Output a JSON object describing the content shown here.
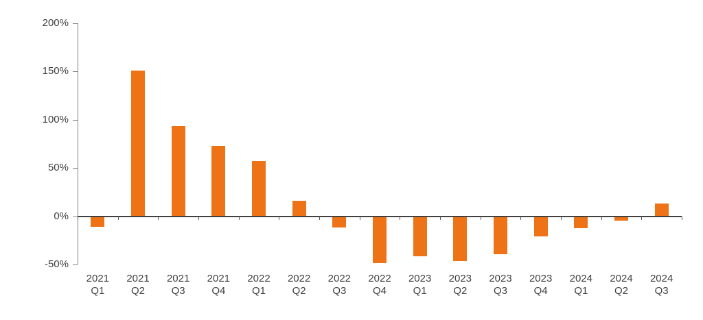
{
  "chart_data": {
    "type": "bar",
    "title": "",
    "xlabel": "",
    "ylabel": "",
    "categories": [
      "2021 Q1",
      "2021 Q2",
      "2021 Q3",
      "2021 Q4",
      "2022 Q1",
      "2022 Q2",
      "2022 Q3",
      "2022 Q4",
      "2023 Q1",
      "2023 Q2",
      "2023 Q3",
      "2023 Q4",
      "2024 Q1",
      "2024 Q2",
      "2024 Q3"
    ],
    "values": [
      -10,
      151,
      93,
      73,
      57,
      16,
      -11,
      -48,
      -41,
      -46,
      -39,
      -20,
      -12,
      -4,
      13
    ],
    "unit": "%",
    "ylim": [
      -50,
      200
    ],
    "y_tick_labels": [
      "200%",
      "150%",
      "100%",
      "50%",
      "0%",
      "-50%"
    ],
    "grid": false,
    "legend": "none",
    "colors": {
      "bar": "#ED7316",
      "axis_line": "#7f7f7f",
      "zero_line": "#404040",
      "tick": "#595959",
      "text": "#404040"
    }
  }
}
